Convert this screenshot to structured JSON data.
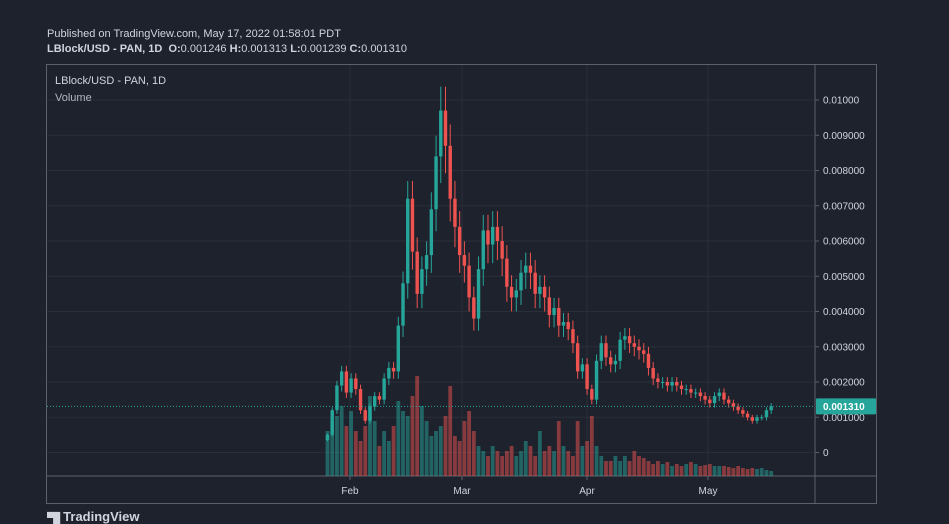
{
  "header": {
    "published": "Published on TradingView.com, May 17, 2022 01:58:01 PDT",
    "symbol_line": "LBlock/USD - PAN, 1D",
    "o_label": "O:",
    "o_value": "0.001246",
    "h_label": "H:",
    "h_value": "0.001313",
    "l_label": "L:",
    "l_value": "0.001239",
    "c_label": "C:",
    "c_value": "0.001310"
  },
  "legend": {
    "symbol": "LBlock/USD - PAN, 1D",
    "volume_label": "Volume"
  },
  "logo_text": "TradingView",
  "chart_data": {
    "type": "candlestick",
    "x_labels": [
      "Feb",
      "Mar",
      "Apr",
      "May"
    ],
    "price_ticks": [
      "0.01000",
      "0.009000",
      "0.008000",
      "0.007000",
      "0.006000",
      "0.005000",
      "0.004000",
      "0.003000",
      "0.002000",
      "0.001000",
      "0"
    ],
    "price_tick_values": [
      0.01,
      0.009,
      0.008,
      0.007,
      0.006,
      0.005,
      0.004,
      0.003,
      0.002,
      0.001,
      0
    ],
    "last_price": "0.001310",
    "last_price_value": 0.00131,
    "colors": {
      "up": "#26a69a",
      "down": "#ef5350",
      "background": "#1e222d",
      "grid": "#2a2e39",
      "text": "#d1d4dc",
      "price_tag": "#26a69a"
    },
    "closes": [
      0.0005,
      0.0012,
      0.0019,
      0.0023,
      0.0017,
      0.0021,
      0.0018,
      0.0012,
      0.0009,
      0.0013,
      0.0016,
      0.0015,
      0.0021,
      0.0024,
      0.0023,
      0.0036,
      0.0048,
      0.0072,
      0.0057,
      0.0045,
      0.0052,
      0.0056,
      0.0069,
      0.0084,
      0.0097,
      0.0087,
      0.0072,
      0.0064,
      0.0056,
      0.0053,
      0.0044,
      0.0038,
      0.0052,
      0.0063,
      0.0059,
      0.0064,
      0.006,
      0.0055,
      0.0047,
      0.0044,
      0.0046,
      0.0051,
      0.0053,
      0.0051,
      0.0045,
      0.0047,
      0.0044,
      0.0039,
      0.0041,
      0.0036,
      0.0037,
      0.0035,
      0.0031,
      0.0023,
      0.0025,
      0.0018,
      0.0015,
      0.0026,
      0.0031,
      0.0027,
      0.0025,
      0.0026,
      0.0032,
      0.0033,
      0.0031,
      0.003,
      0.0029,
      0.0028,
      0.0024,
      0.0021,
      0.002,
      0.002,
      0.0019,
      0.002,
      0.0019,
      0.0018,
      0.0018,
      0.0017,
      0.0017,
      0.0016,
      0.0015,
      0.0014,
      0.0016,
      0.0017,
      0.0015,
      0.0014,
      0.0013,
      0.0012,
      0.0011,
      0.001,
      0.0009,
      0.001,
      0.001,
      0.0012,
      0.00131
    ],
    "volumes": [
      0.45,
      0.55,
      0.6,
      0.7,
      0.5,
      0.65,
      0.45,
      0.35,
      0.5,
      0.8,
      0.55,
      0.3,
      0.45,
      0.35,
      0.5,
      0.75,
      0.65,
      0.6,
      0.8,
      1.0,
      0.7,
      0.55,
      0.4,
      0.45,
      0.5,
      0.6,
      0.9,
      0.4,
      0.35,
      0.55,
      0.65,
      0.45,
      0.3,
      0.25,
      0.2,
      0.3,
      0.25,
      0.2,
      0.25,
      0.3,
      0.2,
      0.25,
      0.35,
      0.3,
      0.2,
      0.45,
      0.25,
      0.3,
      0.25,
      0.55,
      0.3,
      0.25,
      0.2,
      0.55,
      0.3,
      0.35,
      0.6,
      0.3,
      0.2,
      0.15,
      0.15,
      0.2,
      0.15,
      0.2,
      0.15,
      0.25,
      0.2,
      0.18,
      0.15,
      0.12,
      0.15,
      0.12,
      0.14,
      0.1,
      0.12,
      0.1,
      0.12,
      0.14,
      0.12,
      0.1,
      0.11,
      0.12,
      0.1,
      0.1,
      0.1,
      0.09,
      0.08,
      0.1,
      0.08,
      0.07,
      0.08,
      0.07,
      0.08,
      0.06,
      0.05
    ]
  }
}
